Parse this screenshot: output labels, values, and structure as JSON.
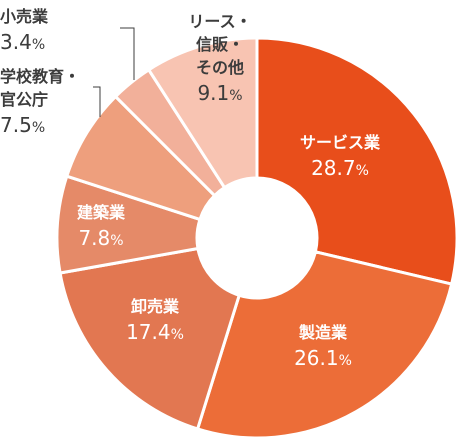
{
  "chart_data": {
    "type": "pie",
    "donut": true,
    "start_angle_deg": 0,
    "direction": "clockwise",
    "slices": [
      {
        "name": "サービス業",
        "value": 28.7,
        "value_label": "28.7",
        "unit": "%",
        "color": "#e84e1b"
      },
      {
        "name": "製造業",
        "value": 26.1,
        "value_label": "26.1",
        "unit": "%",
        "color": "#ec6d38"
      },
      {
        "name": "卸売業",
        "value": 17.4,
        "value_label": "17.4",
        "unit": "%",
        "color": "#e27751"
      },
      {
        "name": "建築業",
        "value": 7.8,
        "value_label": "7.8",
        "unit": "%",
        "color": "#e58a68"
      },
      {
        "name": "学校教育・官公庁",
        "value": 7.5,
        "value_label": "7.5",
        "unit": "%",
        "color": "#ee9f7d"
      },
      {
        "name": "小売業",
        "value": 3.4,
        "value_label": "3.4",
        "unit": "%",
        "color": "#f2b09a"
      },
      {
        "name": "リース・信販・その他",
        "value": 9.1,
        "value_label": "9.1",
        "unit": "%",
        "color": "#f8c4b2"
      }
    ]
  }
}
